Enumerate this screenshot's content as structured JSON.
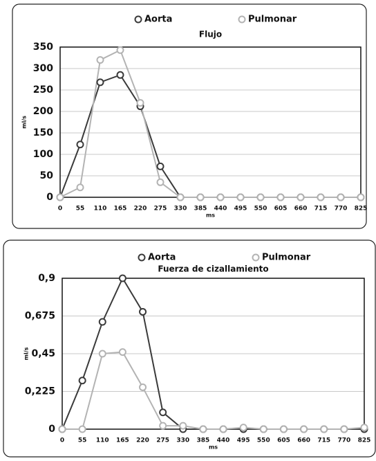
{
  "chart_data": [
    {
      "type": "line",
      "title": "Flujo",
      "xlabel": "ms",
      "ylabel": "ml/s",
      "x": [
        0,
        55,
        110,
        165,
        220,
        275,
        330,
        385,
        440,
        495,
        550,
        605,
        660,
        715,
        770,
        825
      ],
      "xlim": [
        0,
        825
      ],
      "xticks": [
        0,
        55,
        110,
        165,
        220,
        275,
        330,
        385,
        440,
        495,
        550,
        605,
        660,
        715,
        770,
        825
      ],
      "ylim": [
        0,
        350
      ],
      "yticks": [
        0,
        50,
        100,
        150,
        200,
        250,
        300,
        350
      ],
      "grid": true,
      "series": [
        {
          "name": "Aorta",
          "color": "#3a3a3a",
          "values": [
            0,
            123,
            268,
            285,
            212,
            72,
            0,
            0,
            0,
            0,
            0,
            0,
            0,
            0,
            0,
            0
          ]
        },
        {
          "name": "Pulmonar",
          "color": "#b3b3b3",
          "values": [
            0,
            23,
            320,
            343,
            220,
            35,
            0,
            0,
            0,
            0,
            0,
            0,
            0,
            0,
            0,
            0
          ]
        }
      ]
    },
    {
      "type": "line",
      "title": "Fuerza de cizallamiento",
      "xlabel": "ms",
      "ylabel": "ml/s",
      "x": [
        0,
        55,
        110,
        165,
        220,
        275,
        330,
        385,
        440,
        495,
        550,
        605,
        660,
        715,
        770,
        825
      ],
      "xlim": [
        0,
        825
      ],
      "xticks": [
        0,
        55,
        110,
        165,
        220,
        275,
        330,
        385,
        440,
        495,
        550,
        605,
        660,
        715,
        770,
        825
      ],
      "ylim": [
        0,
        0.9
      ],
      "yticks": [
        0,
        {
          "value": 0.225,
          "label": "0,225"
        },
        {
          "value": 0.45,
          "label": "0,45"
        },
        {
          "value": 0.675,
          "label": "0,675"
        },
        {
          "value": 0.9,
          "label": "0,9"
        }
      ],
      "grid": true,
      "series": [
        {
          "name": "Aorta",
          "color": "#3a3a3a",
          "values": [
            0,
            0.29,
            0.64,
            0.9,
            0.7,
            0.1,
            0,
            0,
            0,
            0,
            0,
            0,
            0,
            0,
            0,
            0
          ]
        },
        {
          "name": "Pulmonar",
          "color": "#b3b3b3",
          "values": [
            0,
            0,
            0.45,
            0.46,
            0.25,
            0.02,
            0.02,
            0,
            0,
            0.01,
            0,
            0,
            0,
            0,
            0,
            0.01
          ]
        }
      ]
    }
  ]
}
